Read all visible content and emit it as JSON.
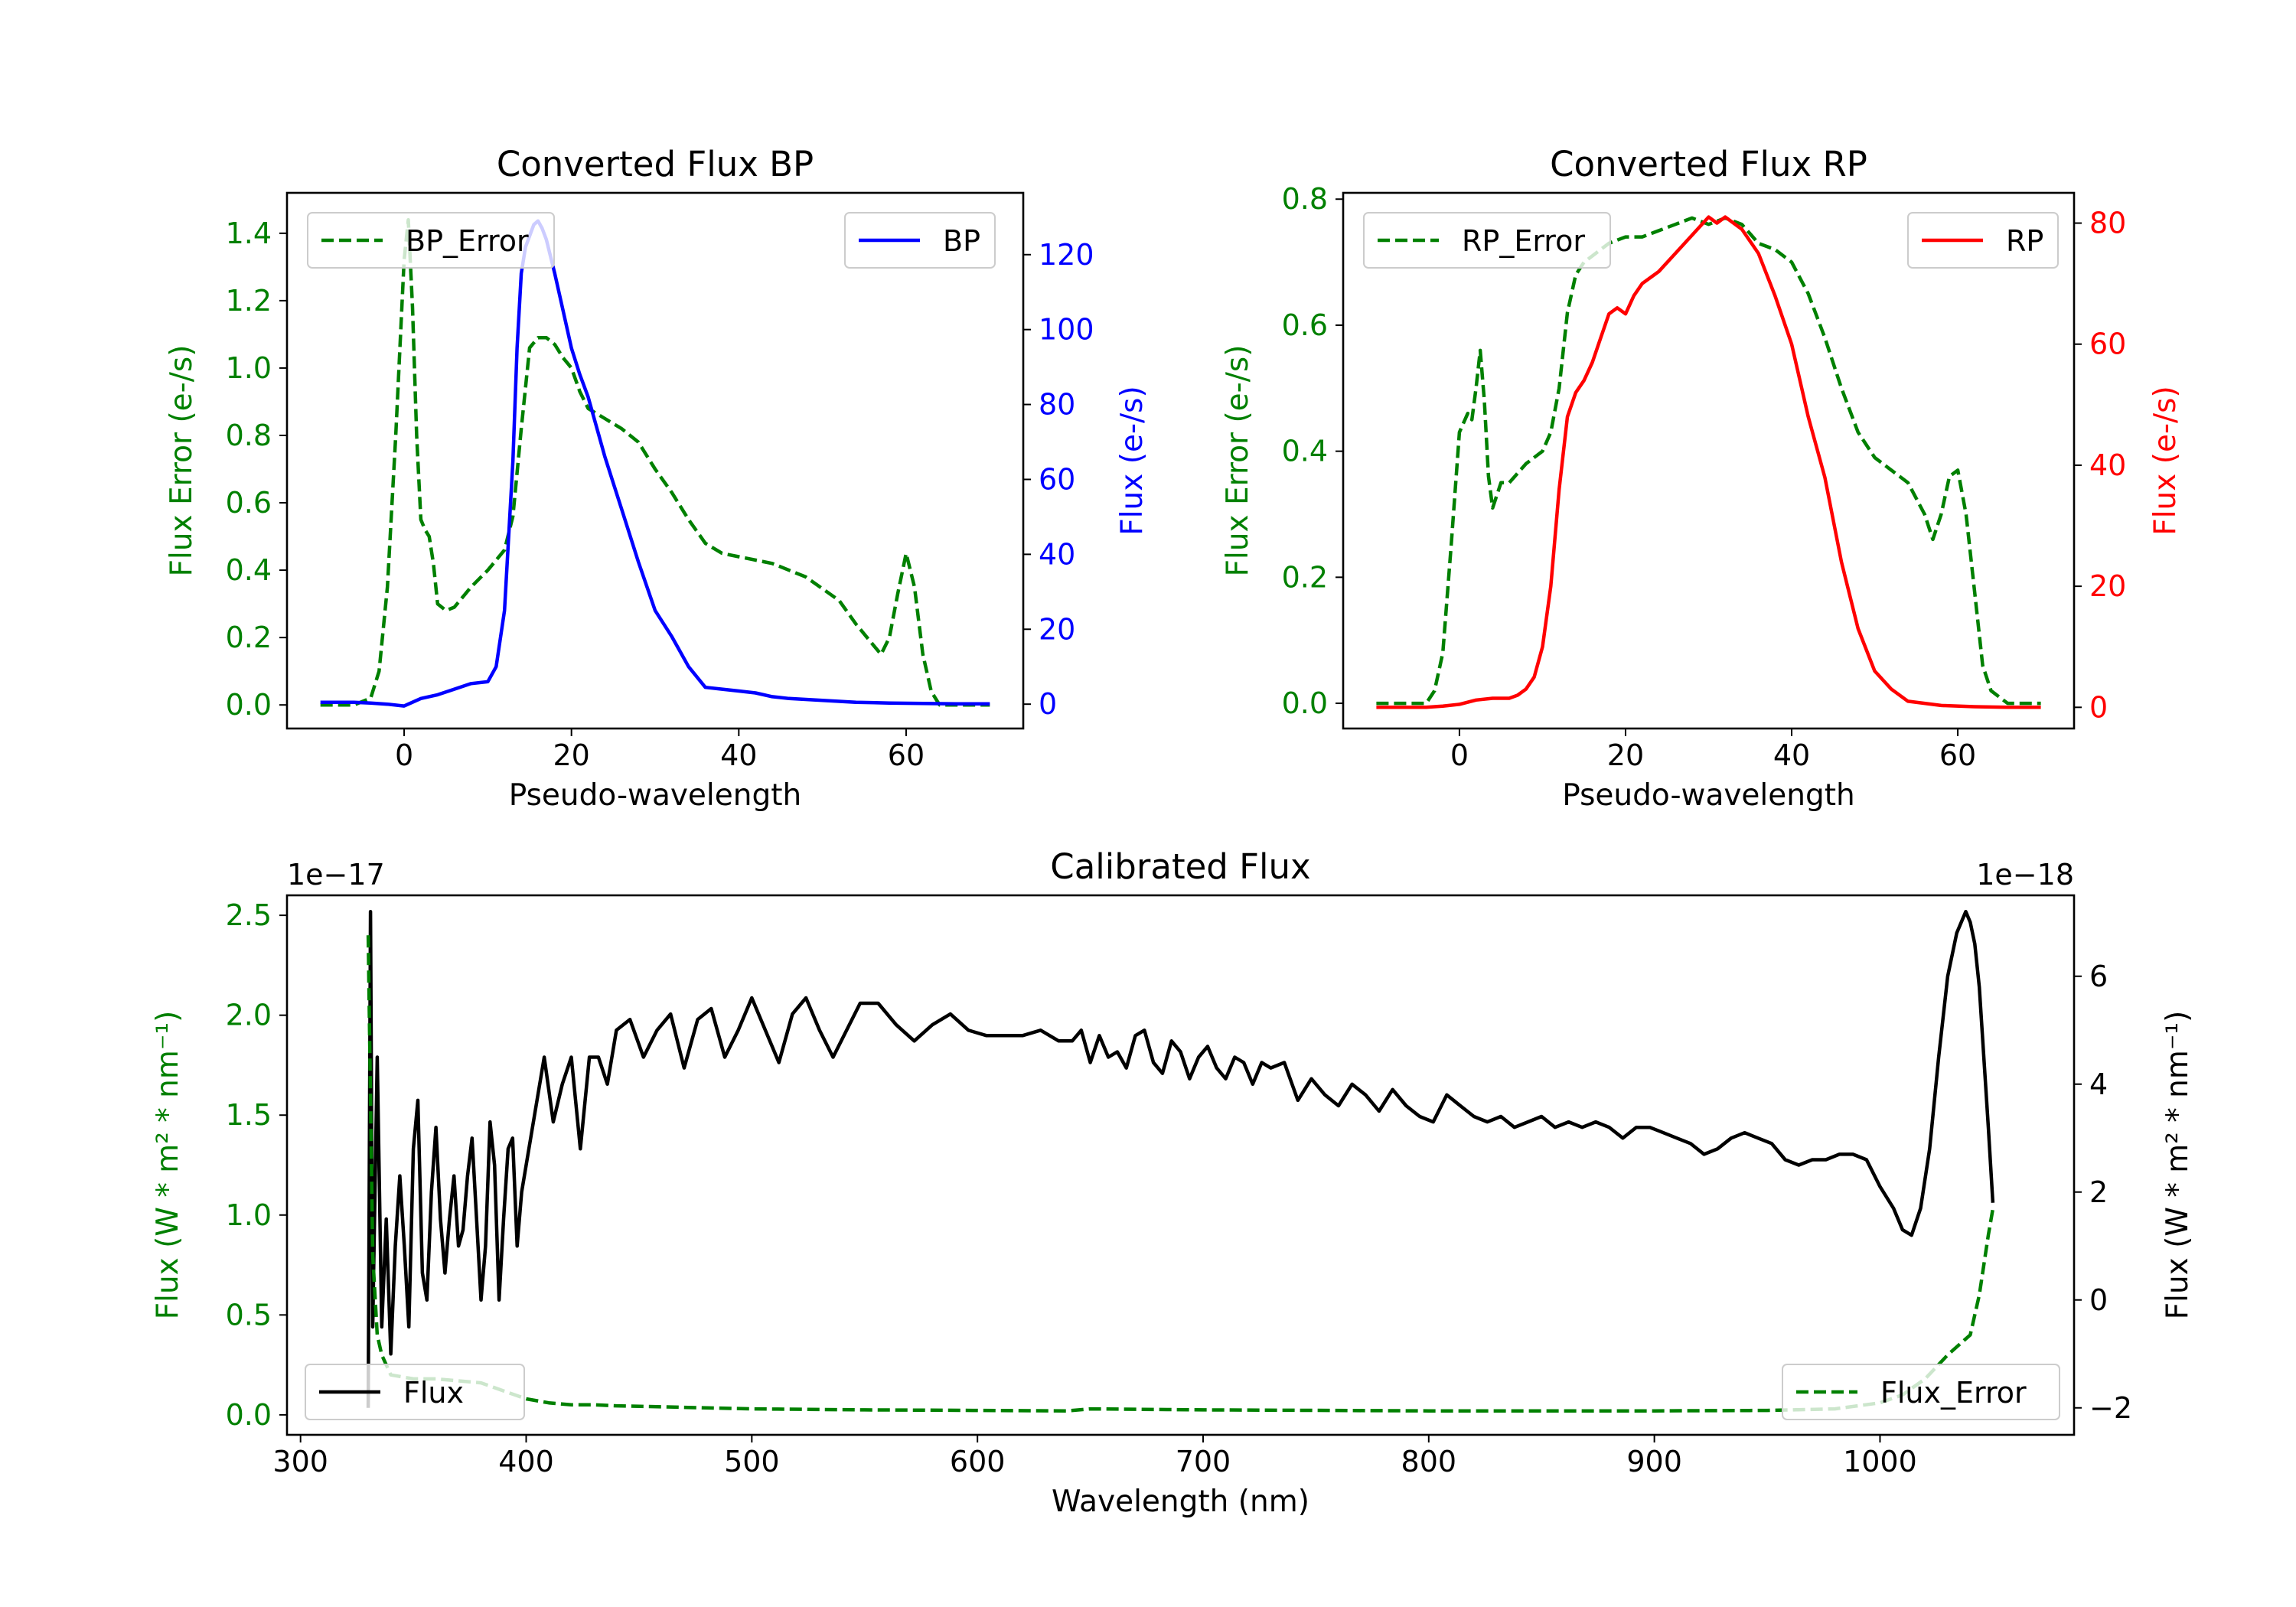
{
  "colors": {
    "green": "#008000",
    "blue": "#0000ff",
    "red": "#ff0000",
    "black": "#000000"
  },
  "chart_data": [
    {
      "id": "bp",
      "type": "line",
      "title": "Converted Flux BP",
      "xlabel": "Pseudo-wavelength",
      "xlim": [
        -14,
        74
      ],
      "xticks": [
        0,
        20,
        40,
        60
      ],
      "xtick_labels": [
        "0",
        "20",
        "40",
        "60"
      ],
      "left_axis": {
        "label": "Flux Error (e-/s)",
        "ylim": [
          -0.07,
          1.52
        ],
        "ticks": [
          0.0,
          0.2,
          0.4,
          0.6,
          0.8,
          1.0,
          1.2,
          1.4
        ],
        "tick_labels": [
          "0.0",
          "0.2",
          "0.4",
          "0.6",
          "0.8",
          "1.0",
          "1.2",
          "1.4"
        ],
        "color": "#008000"
      },
      "right_axis": {
        "label": "Flux (e-/s)",
        "ylim": [
          -6.5,
          136.5
        ],
        "ticks": [
          0,
          20,
          40,
          60,
          80,
          100,
          120
        ],
        "tick_labels": [
          "0",
          "20",
          "40",
          "60",
          "80",
          "100",
          "120"
        ],
        "color": "#0000ff"
      },
      "series": [
        {
          "name": "BP_Error",
          "axis": "left",
          "style": "dashed",
          "color": "#008000",
          "x": [
            -10,
            -6,
            -4,
            -3,
            -2,
            -1,
            0,
            0.5,
            1,
            1.5,
            2,
            2.5,
            3,
            3.5,
            4,
            5,
            6,
            8,
            10,
            12,
            13,
            14,
            15,
            16,
            17,
            18,
            19,
            20,
            21,
            22,
            24,
            26,
            28,
            30,
            32,
            34,
            36,
            38,
            40,
            44,
            48,
            52,
            54,
            56,
            57,
            58,
            59,
            60,
            61,
            62,
            63,
            64,
            66,
            70
          ],
          "y": [
            0.0,
            0.0,
            0.02,
            0.1,
            0.35,
            0.8,
            1.32,
            1.44,
            1.18,
            0.8,
            0.55,
            0.52,
            0.5,
            0.42,
            0.3,
            0.28,
            0.29,
            0.35,
            0.4,
            0.46,
            0.56,
            0.82,
            1.06,
            1.09,
            1.09,
            1.07,
            1.03,
            1.0,
            0.93,
            0.88,
            0.85,
            0.82,
            0.78,
            0.7,
            0.63,
            0.55,
            0.48,
            0.45,
            0.44,
            0.42,
            0.38,
            0.31,
            0.24,
            0.18,
            0.15,
            0.2,
            0.33,
            0.45,
            0.35,
            0.15,
            0.04,
            0.0,
            0.0,
            0.0
          ]
        },
        {
          "name": "BP",
          "axis": "right",
          "style": "solid",
          "color": "#0000ff",
          "x": [
            -10,
            -6,
            -4,
            -2,
            0,
            2,
            4,
            6,
            8,
            10,
            11,
            12,
            13,
            13.5,
            14,
            14.5,
            15,
            15.5,
            16,
            16.5,
            17,
            18,
            19,
            20,
            21,
            22,
            24,
            26,
            28,
            30,
            32,
            34,
            36,
            38,
            40,
            42,
            44,
            46,
            50,
            54,
            58,
            62,
            66,
            70
          ],
          "y": [
            0.5,
            0.5,
            0.3,
            0.0,
            -0.5,
            1.5,
            2.5,
            4.0,
            5.5,
            6.0,
            10.0,
            25.0,
            65.0,
            95.0,
            115.0,
            122.0,
            125.0,
            128.0,
            129.0,
            127.0,
            124.0,
            115.0,
            105.0,
            95.0,
            88.0,
            82.0,
            66.0,
            52.0,
            38.0,
            25.0,
            18.0,
            10.0,
            4.5,
            4.0,
            3.5,
            3.0,
            2.0,
            1.5,
            1.0,
            0.5,
            0.3,
            0.2,
            0.1,
            0.1
          ]
        }
      ],
      "legends": [
        {
          "label": "BP_Error",
          "location": "upper left"
        },
        {
          "label": "BP",
          "location": "upper right"
        }
      ]
    },
    {
      "id": "rp",
      "type": "line",
      "title": "Converted Flux RP",
      "xlabel": "Pseudo-wavelength",
      "xlim": [
        -14,
        74
      ],
      "xticks": [
        0,
        20,
        40,
        60
      ],
      "xtick_labels": [
        "0",
        "20",
        "40",
        "60"
      ],
      "left_axis": {
        "label": "Flux Error (e-/s)",
        "ylim": [
          -0.04,
          0.81
        ],
        "ticks": [
          0.0,
          0.2,
          0.4,
          0.6,
          0.8
        ],
        "tick_labels": [
          "0.0",
          "0.2",
          "0.4",
          "0.6",
          "0.8"
        ],
        "color": "#008000"
      },
      "right_axis": {
        "label": "Flux (e-/s)",
        "ylim": [
          -3.5,
          85.0
        ],
        "ticks": [
          0,
          20,
          40,
          60,
          80
        ],
        "tick_labels": [
          "0",
          "20",
          "40",
          "60",
          "80"
        ],
        "color": "#ff0000"
      },
      "series": [
        {
          "name": "RP_Error",
          "axis": "left",
          "style": "dashed",
          "color": "#008000",
          "x": [
            -10,
            -6,
            -4,
            -3,
            -2,
            -1,
            0,
            1,
            1.5,
            2,
            2.5,
            3,
            3.5,
            4,
            5,
            6,
            8,
            10,
            11,
            12,
            13,
            14,
            15,
            16,
            18,
            20,
            22,
            24,
            26,
            28,
            30,
            32,
            34,
            36,
            38,
            40,
            42,
            44,
            46,
            48,
            50,
            52,
            54,
            56,
            57,
            58,
            59,
            60,
            61,
            62,
            63,
            64,
            66,
            70
          ],
          "y": [
            0.0,
            0.0,
            0.0,
            0.02,
            0.08,
            0.25,
            0.43,
            0.46,
            0.45,
            0.5,
            0.56,
            0.48,
            0.36,
            0.31,
            0.35,
            0.35,
            0.38,
            0.4,
            0.43,
            0.5,
            0.62,
            0.68,
            0.7,
            0.71,
            0.73,
            0.74,
            0.74,
            0.75,
            0.76,
            0.77,
            0.76,
            0.77,
            0.76,
            0.73,
            0.72,
            0.7,
            0.65,
            0.58,
            0.5,
            0.43,
            0.39,
            0.37,
            0.35,
            0.3,
            0.26,
            0.3,
            0.36,
            0.37,
            0.3,
            0.18,
            0.06,
            0.02,
            0.0,
            0.0
          ]
        },
        {
          "name": "RP",
          "axis": "right",
          "style": "solid",
          "color": "#ff0000",
          "x": [
            -10,
            -6,
            -4,
            -2,
            0,
            2,
            4,
            6,
            7,
            8,
            9,
            10,
            11,
            12,
            13,
            14,
            15,
            16,
            17,
            18,
            19,
            20,
            21,
            22,
            24,
            26,
            28,
            30,
            31,
            32,
            34,
            36,
            38,
            40,
            42,
            44,
            46,
            48,
            50,
            52,
            54,
            58,
            62,
            66,
            70
          ],
          "y": [
            0.0,
            0.0,
            0.0,
            0.2,
            0.5,
            1.2,
            1.5,
            1.5,
            2.0,
            3.0,
            5.0,
            10.0,
            20.0,
            36.0,
            48.0,
            52.0,
            54.0,
            57.0,
            61.0,
            65.0,
            66.0,
            65.0,
            68.0,
            70.0,
            72.0,
            75.0,
            78.0,
            81.0,
            80.0,
            81.0,
            79.0,
            75.0,
            68.0,
            60.0,
            48.0,
            38.0,
            24.0,
            13.0,
            6.0,
            3.0,
            1.0,
            0.3,
            0.1,
            0.0,
            0.0
          ]
        }
      ],
      "legends": [
        {
          "label": "RP_Error",
          "location": "upper left"
        },
        {
          "label": "RP",
          "location": "upper right"
        }
      ]
    },
    {
      "id": "cal",
      "type": "line",
      "title": "Calibrated Flux",
      "xlabel": "Wavelength (nm)",
      "xlim": [
        294,
        1086
      ],
      "xticks": [
        300,
        400,
        500,
        600,
        700,
        800,
        900,
        1000
      ],
      "xtick_labels": [
        "300",
        "400",
        "500",
        "600",
        "700",
        "800",
        "900",
        "1000"
      ],
      "left_axis": {
        "label": "Flux (W * m² * nm⁻¹)",
        "ylim": [
          -0.1,
          2.6
        ],
        "ticks": [
          0.0,
          0.5,
          1.0,
          1.5,
          2.0,
          2.5
        ],
        "tick_labels": [
          "0.0",
          "0.5",
          "1.0",
          "1.5",
          "2.0",
          "2.5"
        ],
        "offset_text": "1e−17",
        "color": "#008000"
      },
      "right_axis": {
        "label": "Flux (W * m² * nm⁻¹)",
        "ylim": [
          -2.5,
          7.5
        ],
        "ticks": [
          -2,
          0,
          2,
          4,
          6
        ],
        "tick_labels": [
          "−2",
          "0",
          "2",
          "4",
          "6"
        ],
        "offset_text": "1e−18",
        "color": "#000000"
      },
      "series": [
        {
          "name": "Flux",
          "axis": "right",
          "style": "solid",
          "color": "#000000",
          "x": [
            330,
            331,
            332,
            334,
            336,
            338,
            340,
            342,
            344,
            346,
            348,
            350,
            352,
            354,
            356,
            358,
            360,
            362,
            364,
            366,
            368,
            370,
            372,
            374,
            376,
            378,
            380,
            382,
            384,
            386,
            388,
            390,
            392,
            394,
            396,
            398,
            400,
            404,
            408,
            412,
            416,
            420,
            424,
            428,
            432,
            436,
            440,
            446,
            452,
            458,
            464,
            470,
            476,
            482,
            488,
            494,
            500,
            506,
            512,
            518,
            524,
            530,
            536,
            542,
            548,
            556,
            564,
            572,
            580,
            588,
            596,
            604,
            612,
            620,
            628,
            636,
            642,
            646,
            650,
            654,
            658,
            662,
            666,
            670,
            674,
            678,
            682,
            686,
            690,
            694,
            698,
            702,
            706,
            710,
            714,
            718,
            722,
            726,
            730,
            736,
            742,
            748,
            754,
            760,
            766,
            772,
            778,
            784,
            790,
            796,
            802,
            808,
            814,
            820,
            826,
            832,
            838,
            844,
            850,
            856,
            862,
            868,
            874,
            880,
            886,
            892,
            898,
            904,
            910,
            916,
            922,
            928,
            934,
            940,
            946,
            952,
            958,
            964,
            970,
            976,
            982,
            988,
            994,
            1000,
            1006,
            1010,
            1014,
            1018,
            1022,
            1026,
            1030,
            1034,
            1038,
            1040,
            1042,
            1044,
            1046,
            1048,
            1050
          ],
          "y": [
            -2.0,
            7.2,
            -0.5,
            4.5,
            -0.5,
            1.5,
            -1.0,
            1.0,
            2.3,
            1.0,
            -0.5,
            2.8,
            3.7,
            0.5,
            0.0,
            2.0,
            3.2,
            1.5,
            0.5,
            1.5,
            2.3,
            1.0,
            1.3,
            2.3,
            3.0,
            1.5,
            0.0,
            1.0,
            3.3,
            2.5,
            0.0,
            1.5,
            2.8,
            3.0,
            1.0,
            2.0,
            2.5,
            3.5,
            4.5,
            3.3,
            4.0,
            4.5,
            2.8,
            4.5,
            4.5,
            4.0,
            5.0,
            5.2,
            4.5,
            5.0,
            5.3,
            4.3,
            5.2,
            5.4,
            4.5,
            5.0,
            5.6,
            5.0,
            4.4,
            5.3,
            5.6,
            5.0,
            4.5,
            5.0,
            5.5,
            5.5,
            5.1,
            4.8,
            5.1,
            5.3,
            5.0,
            4.9,
            4.9,
            4.9,
            5.0,
            4.8,
            4.8,
            5.0,
            4.4,
            4.9,
            4.5,
            4.6,
            4.3,
            4.9,
            5.0,
            4.4,
            4.2,
            4.8,
            4.6,
            4.1,
            4.5,
            4.7,
            4.3,
            4.1,
            4.5,
            4.4,
            4.0,
            4.4,
            4.3,
            4.4,
            3.7,
            4.1,
            3.8,
            3.6,
            4.0,
            3.8,
            3.5,
            3.9,
            3.6,
            3.4,
            3.3,
            3.8,
            3.6,
            3.4,
            3.3,
            3.4,
            3.2,
            3.3,
            3.4,
            3.2,
            3.3,
            3.2,
            3.3,
            3.2,
            3.0,
            3.2,
            3.2,
            3.1,
            3.0,
            2.9,
            2.7,
            2.8,
            3.0,
            3.1,
            3.0,
            2.9,
            2.6,
            2.5,
            2.6,
            2.6,
            2.7,
            2.7,
            2.6,
            2.1,
            1.7,
            1.3,
            1.2,
            1.7,
            2.8,
            4.5,
            6.0,
            6.8,
            7.2,
            7.0,
            6.6,
            5.8,
            4.5,
            3.2,
            1.8
          ]
        },
        {
          "name": "Flux_Error",
          "axis": "left",
          "style": "dashed",
          "color": "#008000",
          "x": [
            330,
            332,
            334,
            336,
            338,
            340,
            345,
            350,
            360,
            370,
            380,
            390,
            400,
            410,
            420,
            430,
            440,
            460,
            480,
            500,
            550,
            600,
            640,
            650,
            700,
            800,
            900,
            950,
            980,
            1000,
            1010,
            1020,
            1030,
            1035,
            1040,
            1044,
            1048,
            1050
          ],
          "y": [
            2.4,
            0.8,
            0.4,
            0.3,
            0.25,
            0.2,
            0.19,
            0.18,
            0.18,
            0.17,
            0.16,
            0.12,
            0.08,
            0.06,
            0.05,
            0.05,
            0.045,
            0.04,
            0.035,
            0.03,
            0.025,
            0.022,
            0.02,
            0.03,
            0.025,
            0.02,
            0.02,
            0.022,
            0.03,
            0.06,
            0.1,
            0.18,
            0.3,
            0.35,
            0.4,
            0.6,
            0.9,
            1.03
          ]
        }
      ],
      "legends": [
        {
          "label": "Flux",
          "location": "lower left"
        },
        {
          "label": "Flux_Error",
          "location": "lower right"
        }
      ]
    }
  ]
}
